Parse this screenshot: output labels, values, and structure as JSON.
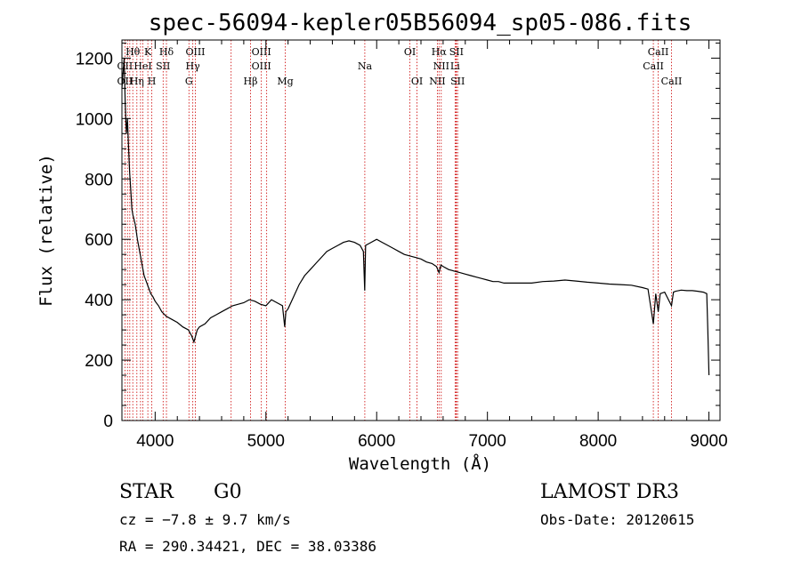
{
  "chart_data": {
    "type": "line",
    "title": "spec-56094-kepler05B56094_sp05-086.fits",
    "xlabel": "Wavelength (Å)",
    "ylabel": "Flux (relative)",
    "xlim": [
      3700,
      9100
    ],
    "ylim": [
      0,
      1260
    ],
    "xticks": [
      4000,
      5000,
      6000,
      7000,
      8000,
      9000
    ],
    "yticks": [
      0,
      200,
      400,
      600,
      800,
      1000,
      1200
    ],
    "series": [
      {
        "name": "flux",
        "x": [
          3700,
          3720,
          3730,
          3740,
          3750,
          3760,
          3770,
          3780,
          3790,
          3800,
          3820,
          3840,
          3860,
          3880,
          3900,
          3920,
          3940,
          3960,
          3980,
          4000,
          4030,
          4060,
          4100,
          4150,
          4200,
          4250,
          4300,
          4330,
          4350,
          4380,
          4400,
          4450,
          4500,
          4550,
          4600,
          4650,
          4700,
          4750,
          4800,
          4850,
          4900,
          4950,
          5000,
          5050,
          5100,
          5150,
          5170,
          5180,
          5200,
          5250,
          5300,
          5350,
          5400,
          5450,
          5500,
          5550,
          5600,
          5650,
          5700,
          5750,
          5800,
          5850,
          5880,
          5892,
          5900,
          5950,
          6000,
          6050,
          6100,
          6150,
          6200,
          6250,
          6300,
          6350,
          6400,
          6450,
          6500,
          6520,
          6540,
          6563,
          6580,
          6600,
          6650,
          6700,
          6750,
          6800,
          6850,
          6900,
          6950,
          7000,
          7050,
          7100,
          7150,
          7200,
          7300,
          7400,
          7500,
          7600,
          7700,
          7800,
          7900,
          8000,
          8100,
          8200,
          8300,
          8400,
          8450,
          8498,
          8520,
          8542,
          8560,
          8600,
          8662,
          8680,
          8700,
          8750,
          8800,
          8850,
          8900,
          8950,
          8980,
          8990,
          9000
        ],
        "y": [
          1100,
          1200,
          1050,
          950,
          1000,
          900,
          820,
          760,
          700,
          680,
          650,
          600,
          560,
          520,
          480,
          460,
          440,
          420,
          410,
          395,
          380,
          360,
          345,
          335,
          325,
          310,
          300,
          280,
          260,
          300,
          310,
          320,
          340,
          350,
          360,
          370,
          380,
          385,
          390,
          400,
          395,
          385,
          380,
          400,
          390,
          380,
          310,
          360,
          370,
          410,
          450,
          480,
          500,
          520,
          540,
          560,
          570,
          580,
          590,
          595,
          590,
          580,
          560,
          430,
          580,
          590,
          600,
          590,
          580,
          570,
          560,
          550,
          545,
          540,
          535,
          525,
          520,
          515,
          510,
          490,
          515,
          510,
          500,
          495,
          490,
          485,
          480,
          475,
          470,
          465,
          460,
          460,
          455,
          455,
          455,
          455,
          460,
          462,
          465,
          462,
          458,
          455,
          452,
          450,
          448,
          440,
          435,
          320,
          420,
          360,
          420,
          425,
          380,
          425,
          428,
          432,
          430,
          430,
          428,
          425,
          420,
          300,
          150
        ]
      }
    ],
    "spectral_lines": {
      "row1": [
        {
          "label": "Hθ",
          "x": 3798
        },
        {
          "label": "K",
          "x": 3934
        },
        {
          "label": "Hδ",
          "x": 4102
        },
        {
          "label": "OIII",
          "x": 4363
        },
        {
          "label": "OIII",
          "x": 4959
        },
        {
          "label": "OI",
          "x": 6300
        },
        {
          "label": "Hα",
          "x": 6563
        },
        {
          "label": "SII",
          "x": 6720
        },
        {
          "label": "CaII",
          "x": 8542
        }
      ],
      "row2": [
        {
          "label": "OII",
          "x": 3727
        },
        {
          "label": "HeI",
          "x": 3889
        },
        {
          "label": "SII",
          "x": 4072
        },
        {
          "label": "Hγ",
          "x": 4340
        },
        {
          "label": "OIII",
          "x": 4959
        },
        {
          "label": "Na",
          "x": 5893
        },
        {
          "label": "NII",
          "x": 6583
        },
        {
          "label": "Li",
          "x": 6708
        },
        {
          "label": "CaII",
          "x": 8498
        }
      ],
      "row3": [
        {
          "label": "OII",
          "x": 3727
        },
        {
          "label": "Hη",
          "x": 3835
        },
        {
          "label": "H",
          "x": 3970
        },
        {
          "label": "G",
          "x": 4305
        },
        {
          "label": "Hβ",
          "x": 4861
        },
        {
          "label": "Mg",
          "x": 5175
        },
        {
          "label": "OI",
          "x": 6364
        },
        {
          "label": "NII",
          "x": 6548
        },
        {
          "label": "SII",
          "x": 6731
        },
        {
          "label": "CaII",
          "x": 8662
        }
      ],
      "extra_lines": [
        3750,
        3771,
        3868,
        4686,
        5007,
        6300,
        6716
      ]
    },
    "line_color": "#000000",
    "marker_color": "#cc0000"
  },
  "footer": {
    "object_type": "STAR",
    "subclass": "G0",
    "survey": "LAMOST DR3",
    "cz": "cz = −7.8 ± 9.7 km/s",
    "obs_date": "Obs-Date: 20120615",
    "coords": "RA = 290.34421, DEC =  38.03386"
  }
}
